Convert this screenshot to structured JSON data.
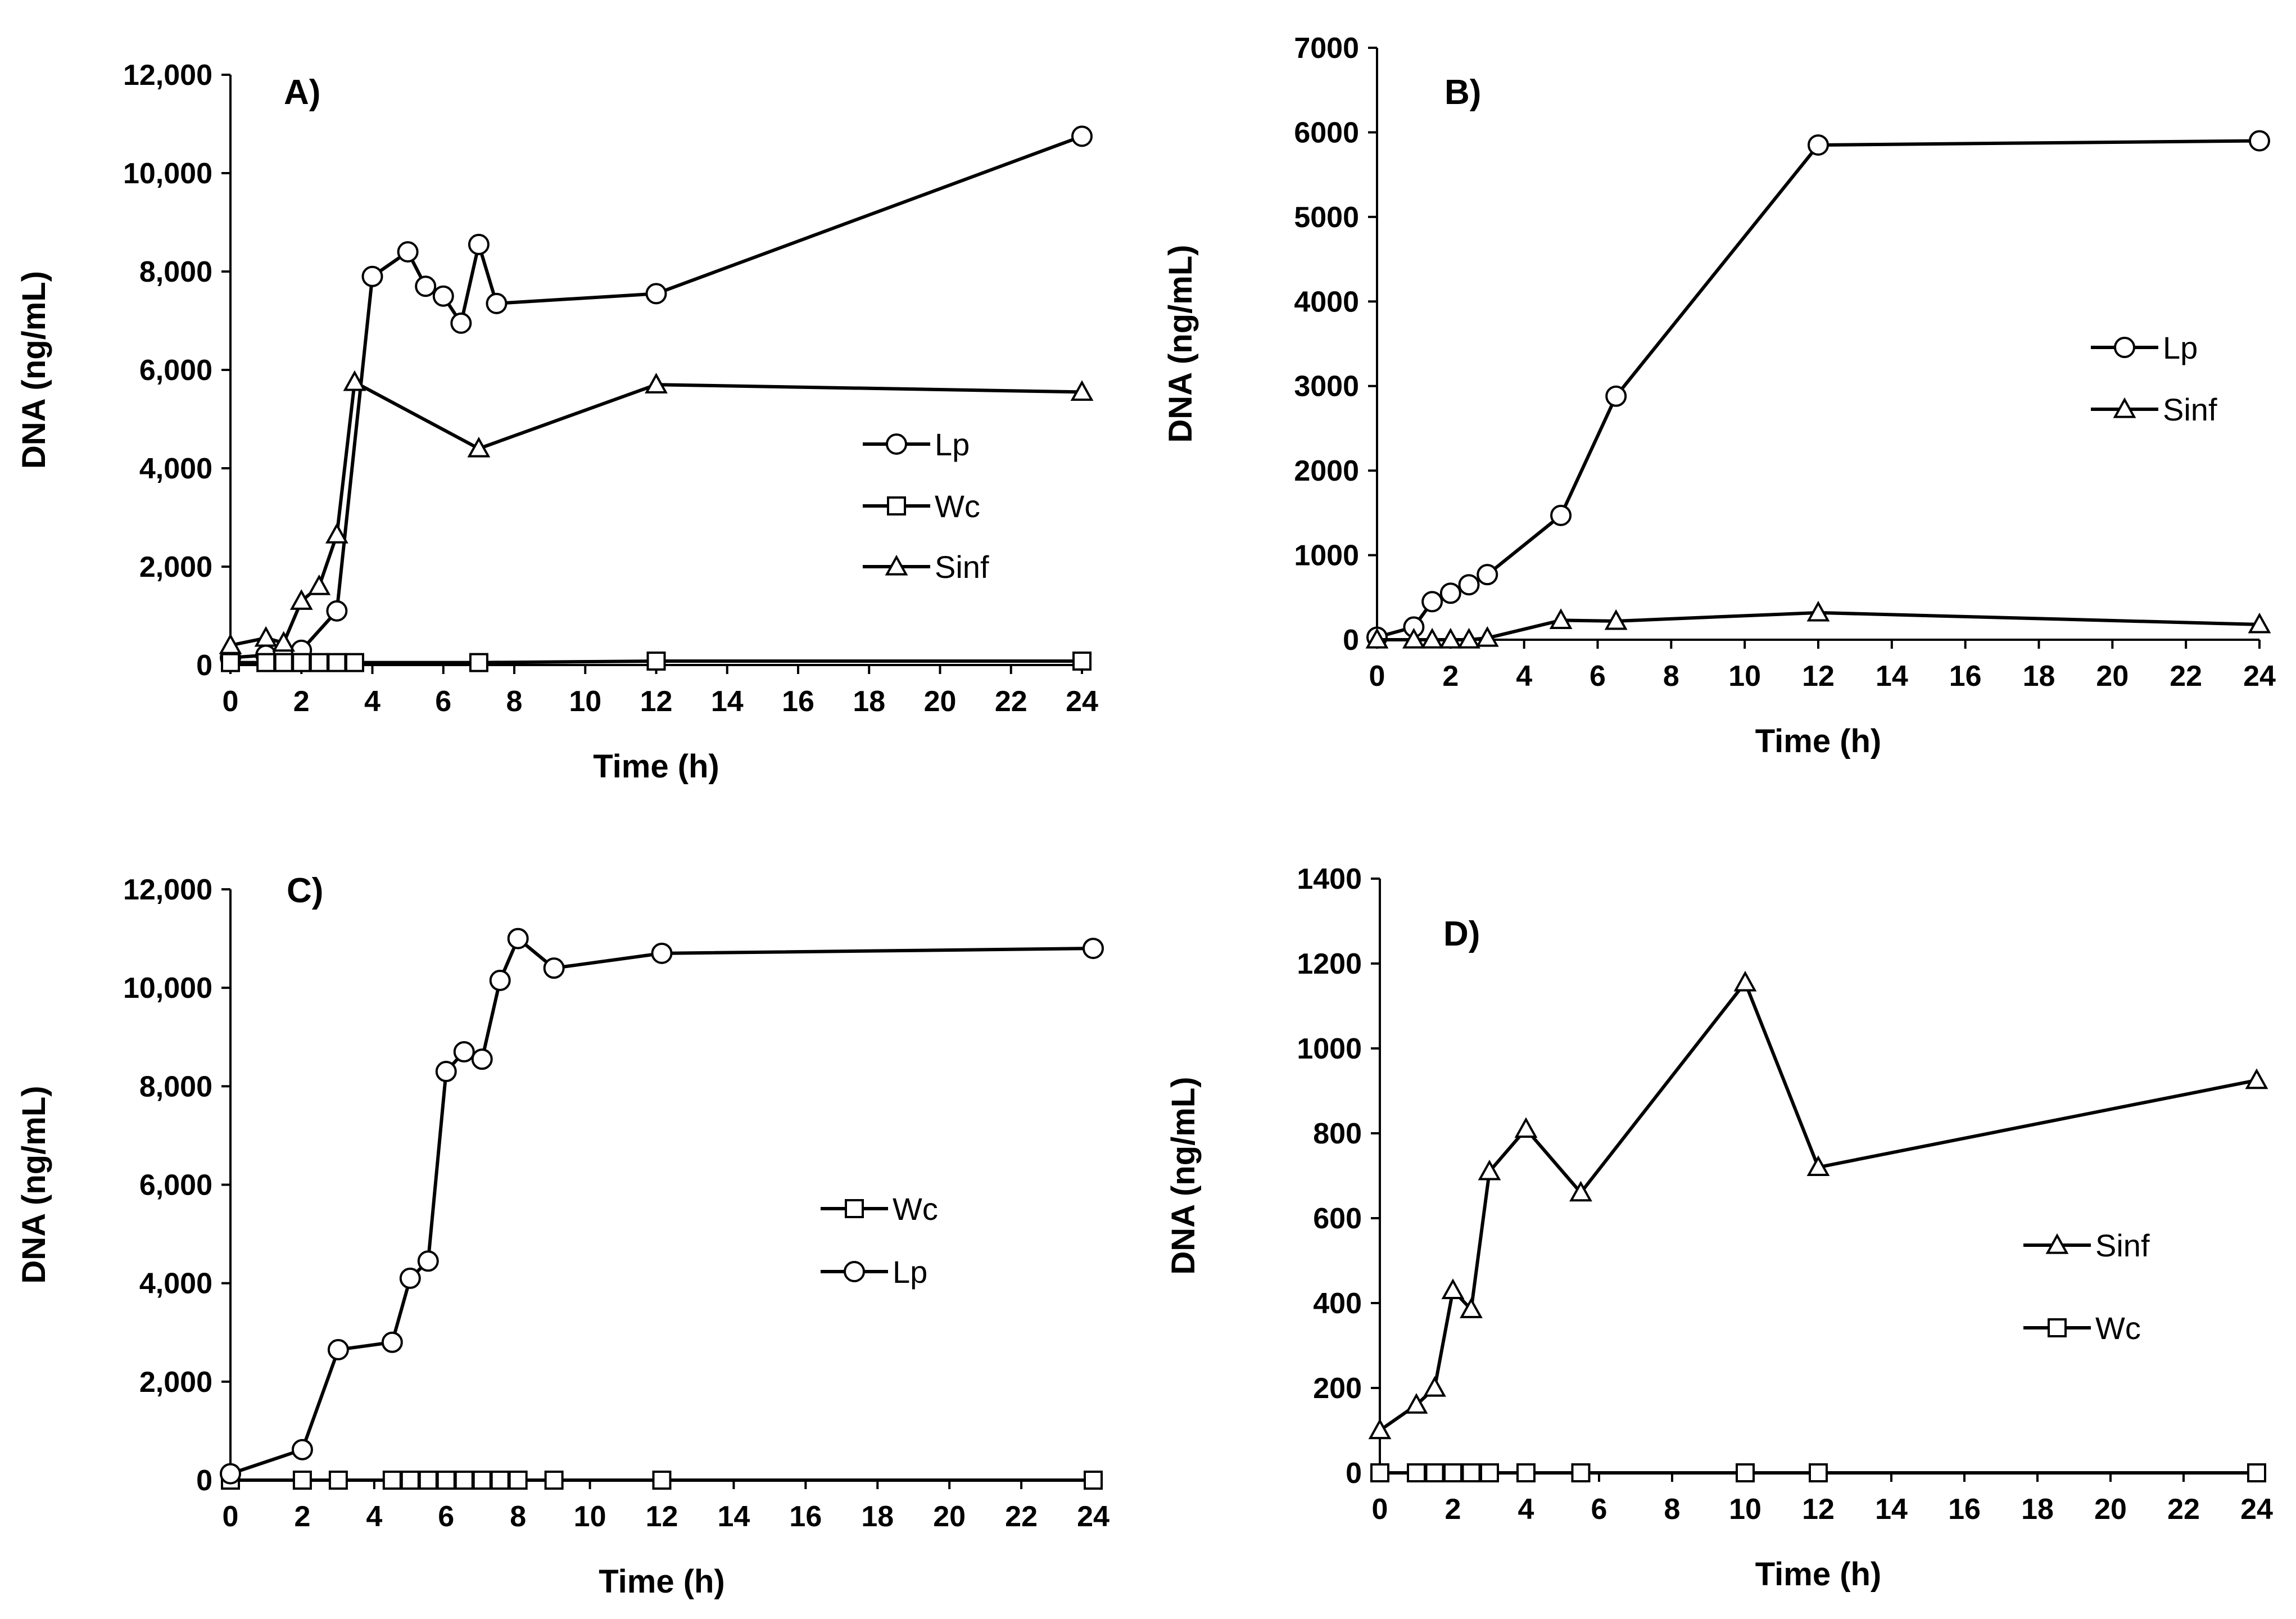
{
  "chart_data": [
    {
      "type": "line",
      "panel_label": "A)",
      "xlabel": "Time (h)",
      "ylabel": "DNA (ng/mL)",
      "xlim": [
        0,
        24
      ],
      "ylim": [
        0,
        12000
      ],
      "xticks": [
        0,
        2,
        4,
        6,
        8,
        10,
        12,
        14,
        16,
        18,
        20,
        22,
        24
      ],
      "yticks": [
        0,
        2000,
        4000,
        6000,
        8000,
        10000,
        12000
      ],
      "xtick_labels": [
        "0",
        "2",
        "4",
        "6",
        "8",
        "10",
        "12",
        "14",
        "16",
        "18",
        "20",
        "22",
        "24"
      ],
      "ytick_labels": [
        "0",
        "2,000",
        "4,000",
        "6,000",
        "8,000",
        "10,000",
        "12,000"
      ],
      "legend": [
        "Lp",
        "Wc",
        "Sinf"
      ],
      "series": [
        {
          "name": "Lp",
          "marker": "circle",
          "x": [
            0,
            1,
            1.5,
            2,
            3,
            4,
            5,
            5.5,
            6,
            6.5,
            7,
            7.5,
            12,
            24
          ],
          "y": [
            150,
            200,
            250,
            300,
            1100,
            7900,
            8400,
            7700,
            7500,
            6950,
            8550,
            7350,
            7550,
            10750
          ]
        },
        {
          "name": "Wc",
          "marker": "square",
          "x": [
            0,
            1,
            1.5,
            2,
            2.5,
            3,
            3.5,
            7,
            12,
            24
          ],
          "y": [
            50,
            50,
            50,
            50,
            50,
            50,
            50,
            50,
            80,
            80
          ]
        },
        {
          "name": "Sinf",
          "marker": "triangle",
          "x": [
            0,
            1,
            1.5,
            2,
            2.5,
            3,
            3.5,
            7,
            12,
            24
          ],
          "y": [
            400,
            550,
            450,
            1300,
            1600,
            2650,
            5750,
            4400,
            5700,
            5550
          ]
        }
      ]
    },
    {
      "type": "line",
      "panel_label": "B)",
      "xlabel": "Time (h)",
      "ylabel": "DNA (ng/mL)",
      "xlim": [
        0,
        24
      ],
      "ylim": [
        0,
        7000
      ],
      "xticks": [
        0,
        2,
        4,
        6,
        8,
        10,
        12,
        14,
        16,
        18,
        20,
        22,
        24
      ],
      "yticks": [
        0,
        1000,
        2000,
        3000,
        4000,
        5000,
        6000,
        7000
      ],
      "xtick_labels": [
        "0",
        "2",
        "4",
        "6",
        "8",
        "10",
        "12",
        "14",
        "16",
        "18",
        "20",
        "22",
        "24"
      ],
      "ytick_labels": [
        "0",
        "1000",
        "2000",
        "3000",
        "4000",
        "5000",
        "6000",
        "7000"
      ],
      "legend": [
        "Lp",
        "Sinf"
      ],
      "series": [
        {
          "name": "Lp",
          "marker": "circle",
          "x": [
            0,
            1,
            1.5,
            2,
            2.5,
            3,
            5,
            6.5,
            12,
            24
          ],
          "y": [
            30,
            150,
            450,
            550,
            650,
            770,
            1470,
            2880,
            5850,
            5900
          ]
        },
        {
          "name": "Sinf",
          "marker": "triangle",
          "x": [
            0,
            1,
            1.5,
            2,
            2.5,
            3,
            5,
            6.5,
            12,
            24
          ],
          "y": [
            0,
            0,
            0,
            0,
            0,
            20,
            230,
            220,
            320,
            180
          ]
        }
      ]
    },
    {
      "type": "line",
      "panel_label": "C)",
      "xlabel": "Time (h)",
      "ylabel": "DNA (ng/mL)",
      "xlim": [
        0,
        24
      ],
      "ylim": [
        0,
        12000
      ],
      "xticks": [
        0,
        2,
        4,
        6,
        8,
        10,
        12,
        14,
        16,
        18,
        20,
        22,
        24
      ],
      "yticks": [
        0,
        2000,
        4000,
        6000,
        8000,
        10000,
        12000
      ],
      "xtick_labels": [
        "0",
        "2",
        "4",
        "6",
        "8",
        "10",
        "12",
        "14",
        "16",
        "18",
        "20",
        "22",
        "24"
      ],
      "ytick_labels": [
        "0",
        "2,000",
        "4,000",
        "6,000",
        "8,000",
        "10,000",
        "12,000"
      ],
      "legend": [
        "Wc",
        "Lp"
      ],
      "series": [
        {
          "name": "Wc",
          "marker": "square",
          "x": [
            0,
            2,
            3,
            4.5,
            5,
            5.5,
            6,
            6.5,
            7,
            7.5,
            8,
            9,
            12,
            24
          ],
          "y": [
            0,
            0,
            0,
            0,
            0,
            0,
            0,
            0,
            0,
            0,
            0,
            0,
            0,
            0
          ]
        },
        {
          "name": "Lp",
          "marker": "circle",
          "x": [
            0,
            2,
            3,
            4.5,
            5,
            5.5,
            6,
            6.5,
            7,
            7.5,
            8,
            9,
            12,
            24
          ],
          "y": [
            130,
            620,
            2650,
            2800,
            4100,
            4450,
            8300,
            8700,
            8550,
            10150,
            11000,
            10400,
            10700,
            10800
          ]
        }
      ]
    },
    {
      "type": "line",
      "panel_label": "D)",
      "xlabel": "Time (h)",
      "ylabel": "DNA (ng/mL)",
      "xlim": [
        0,
        24
      ],
      "ylim": [
        0,
        1400
      ],
      "xticks": [
        0,
        2,
        4,
        6,
        8,
        10,
        12,
        14,
        16,
        18,
        20,
        22,
        24
      ],
      "yticks": [
        0,
        200,
        400,
        600,
        800,
        1000,
        1200,
        1400
      ],
      "xtick_labels": [
        "0",
        "2",
        "4",
        "6",
        "8",
        "10",
        "12",
        "14",
        "16",
        "18",
        "20",
        "22",
        "24"
      ],
      "ytick_labels": [
        "0",
        "200",
        "400",
        "600",
        "800",
        "1000",
        "1200",
        "1400"
      ],
      "legend": [
        "Sinf",
        "Wc"
      ],
      "series": [
        {
          "name": "Sinf",
          "marker": "triangle",
          "x": [
            0,
            1,
            1.5,
            2,
            2.5,
            3,
            4,
            5.5,
            10,
            12,
            24
          ],
          "y": [
            100,
            160,
            200,
            430,
            385,
            710,
            810,
            660,
            1155,
            720,
            925
          ]
        },
        {
          "name": "Wc",
          "marker": "square",
          "x": [
            0,
            1,
            1.5,
            2,
            2.5,
            3,
            4,
            5.5,
            10,
            12,
            24
          ],
          "y": [
            0,
            0,
            0,
            0,
            0,
            0,
            0,
            0,
            0,
            0,
            0
          ]
        }
      ]
    }
  ]
}
